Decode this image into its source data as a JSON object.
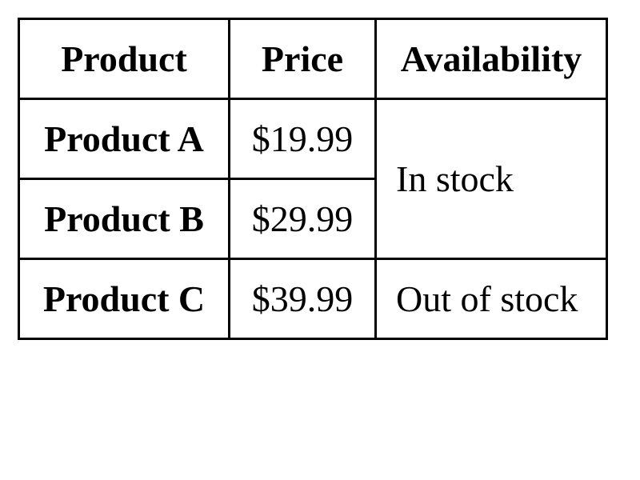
{
  "table": {
    "headers": [
      "Product",
      "Price",
      "Availability"
    ],
    "rows": [
      {
        "product": "Product A",
        "price": "$19.99",
        "availability": "In stock"
      },
      {
        "product": "Product B",
        "price": "$29.99"
      },
      {
        "product": "Product C",
        "price": "$39.99",
        "availability": "Out of stock"
      }
    ]
  }
}
